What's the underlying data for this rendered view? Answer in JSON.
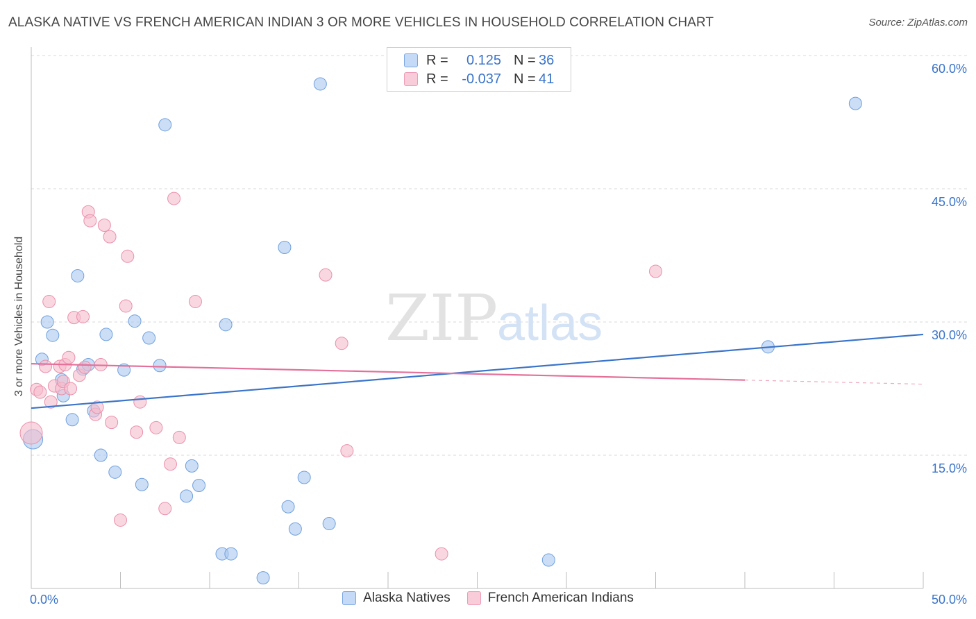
{
  "header": {
    "title": "ALASKA NATIVE VS FRENCH AMERICAN INDIAN 3 OR MORE VEHICLES IN HOUSEHOLD CORRELATION CHART",
    "source": "Source: ZipAtlas.com"
  },
  "watermark": {
    "zip": "ZIP",
    "atlas": "atlas"
  },
  "legend": {
    "series1": {
      "r_label": "R =",
      "r_value": "0.125",
      "n_label": "N =",
      "n_value": "36"
    },
    "series2": {
      "r_label": "R =",
      "r_value": "-0.037",
      "n_label": "N =",
      "n_value": "41"
    }
  },
  "colors": {
    "blue_fill": "#a8c8f0",
    "blue_stroke": "#6f9fdc",
    "blue_line": "#3a74c9",
    "pink_fill": "#f5bccd",
    "pink_stroke": "#ea8fab",
    "pink_line": "#e4709a",
    "grid": "#d8d8d8",
    "tick_label": "#3a74c9"
  },
  "chart_data": {
    "type": "scatter",
    "title": "ALASKA NATIVE VS FRENCH AMERICAN INDIAN 3 OR MORE VEHICLES IN HOUSEHOLD CORRELATION CHART",
    "xlabel": "",
    "ylabel": "3 or more Vehicles in Household",
    "xlim": [
      0,
      50
    ],
    "ylim": [
      0,
      60
    ],
    "x_tick_labels": [
      "0.0%",
      "50.0%"
    ],
    "y_ticks": [
      15,
      30,
      45,
      60
    ],
    "y_tick_labels": [
      "15.0%",
      "30.0%",
      "45.0%",
      "60.0%"
    ],
    "grid": true,
    "series": [
      {
        "name": "Alaska Natives",
        "color": "#a8c8f0",
        "points": [
          [
            0.1,
            16.8,
            14
          ],
          [
            0.6,
            25.8,
            9
          ],
          [
            0.9,
            30.0,
            9
          ],
          [
            1.2,
            28.5,
            9
          ],
          [
            1.7,
            23.5,
            9
          ],
          [
            1.8,
            21.7,
            9
          ],
          [
            2.3,
            19.0,
            9
          ],
          [
            2.6,
            35.2,
            9
          ],
          [
            2.9,
            24.7,
            9
          ],
          [
            3.2,
            25.2,
            9
          ],
          [
            3.5,
            20.0,
            9
          ],
          [
            3.9,
            15.0,
            9
          ],
          [
            4.2,
            28.6,
            9
          ],
          [
            4.7,
            13.1,
            9
          ],
          [
            5.2,
            24.6,
            9
          ],
          [
            5.8,
            30.1,
            9
          ],
          [
            6.2,
            11.7,
            9
          ],
          [
            6.6,
            28.2,
            9
          ],
          [
            7.2,
            25.1,
            9
          ],
          [
            7.5,
            52.2,
            9
          ],
          [
            8.7,
            10.4,
            9
          ],
          [
            9.0,
            13.8,
            9
          ],
          [
            9.4,
            11.6,
            9
          ],
          [
            10.7,
            3.9,
            9
          ],
          [
            10.9,
            29.7,
            9
          ],
          [
            11.2,
            3.9,
            9
          ],
          [
            13.0,
            1.2,
            9
          ],
          [
            14.2,
            38.4,
            9
          ],
          [
            14.4,
            9.2,
            9
          ],
          [
            14.8,
            6.7,
            9
          ],
          [
            15.3,
            12.5,
            9
          ],
          [
            16.2,
            56.8,
            9
          ],
          [
            16.7,
            7.3,
            9
          ],
          [
            29.0,
            3.2,
            9
          ],
          [
            41.3,
            27.2,
            9
          ],
          [
            46.2,
            54.6,
            9
          ]
        ]
      },
      {
        "name": "French American Indians",
        "color": "#f5bccd",
        "points": [
          [
            0.0,
            17.5,
            16
          ],
          [
            0.3,
            22.4,
            9
          ],
          [
            0.5,
            22.1,
            9
          ],
          [
            0.8,
            25.0,
            9
          ],
          [
            1.0,
            32.3,
            9
          ],
          [
            1.1,
            21.0,
            9
          ],
          [
            1.3,
            22.8,
            9
          ],
          [
            1.6,
            25.0,
            9
          ],
          [
            1.7,
            22.5,
            9
          ],
          [
            1.8,
            23.3,
            9
          ],
          [
            1.9,
            25.2,
            9
          ],
          [
            2.1,
            26.0,
            9
          ],
          [
            2.2,
            22.5,
            9
          ],
          [
            2.4,
            30.5,
            9
          ],
          [
            2.7,
            24.0,
            9
          ],
          [
            2.9,
            30.6,
            9
          ],
          [
            3.0,
            24.9,
            9
          ],
          [
            3.2,
            42.4,
            9
          ],
          [
            3.3,
            41.4,
            9
          ],
          [
            3.6,
            19.6,
            9
          ],
          [
            3.7,
            20.4,
            9
          ],
          [
            3.9,
            25.2,
            9
          ],
          [
            4.1,
            40.9,
            9
          ],
          [
            4.4,
            39.6,
            9
          ],
          [
            4.5,
            18.7,
            9
          ],
          [
            5.0,
            7.7,
            9
          ],
          [
            5.3,
            31.8,
            9
          ],
          [
            5.4,
            37.4,
            9
          ],
          [
            5.9,
            17.6,
            9
          ],
          [
            6.1,
            21.0,
            9
          ],
          [
            7.0,
            18.1,
            9
          ],
          [
            7.5,
            9.0,
            9
          ],
          [
            7.8,
            14.0,
            9
          ],
          [
            8.0,
            43.9,
            9
          ],
          [
            8.3,
            17.0,
            9
          ],
          [
            9.2,
            32.3,
            9
          ],
          [
            16.5,
            35.3,
            9
          ],
          [
            17.4,
            27.6,
            9
          ],
          [
            17.7,
            15.5,
            9
          ],
          [
            23.0,
            3.9,
            9
          ],
          [
            35.0,
            35.7,
            9
          ]
        ]
      }
    ],
    "trendlines": [
      {
        "series": "Alaska Natives",
        "x": [
          0,
          50
        ],
        "y": [
          20.3,
          28.6
        ],
        "dashed_from": null
      },
      {
        "series": "French American Indians",
        "x": [
          0,
          50
        ],
        "y": [
          25.3,
          23.0
        ],
        "dashed_from": 40
      }
    ]
  },
  "bottom_legend": {
    "item1": "Alaska Natives",
    "item2": "French American Indians"
  }
}
